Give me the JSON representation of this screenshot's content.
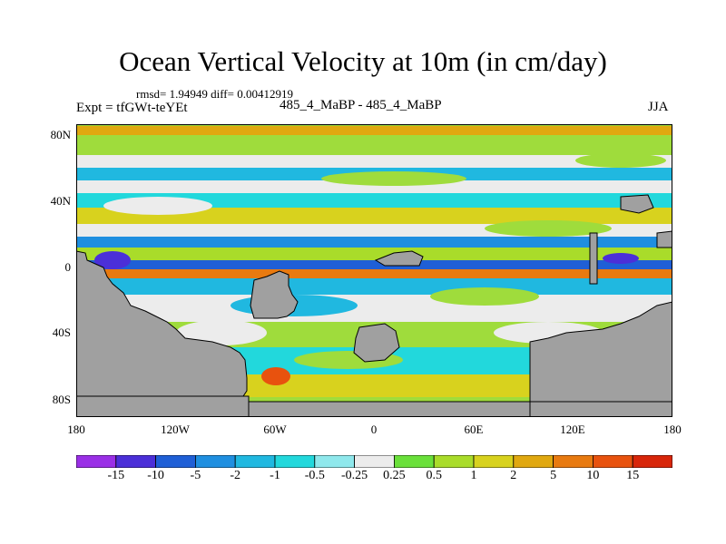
{
  "title": "Ocean Vertical Velocity at 10m (in cm/day)",
  "stats": "rmsd= 1.94949 diff= 0.00412919",
  "expt": "Expt = tfGWt-teYEt",
  "center_label": "485_4_MaBP - 485_4_MaBP",
  "season": "JJA",
  "lat_labels": [
    "80N",
    "40N",
    "0",
    "40S",
    "80S"
  ],
  "lon_labels": [
    "180",
    "120W",
    "60W",
    "0",
    "60E",
    "120E",
    "180"
  ],
  "colorbar": {
    "labels": [
      "-15",
      "-10",
      "-5",
      "-2",
      "-1",
      "-0.5",
      "-0.25",
      "0.25",
      "0.5",
      "1",
      "2",
      "5",
      "10",
      "15"
    ],
    "colors": [
      "#9a2fe6",
      "#4b2fd8",
      "#1f5fd6",
      "#1f8fe0",
      "#20b8e0",
      "#22d8dc",
      "#8fe8ec",
      "#ececec",
      "#6ae03a",
      "#a9dc2a",
      "#d8d21e",
      "#e0a810",
      "#e87a10",
      "#e8520e",
      "#d8260a"
    ]
  },
  "map_colors": {
    "land": "#a0a0a0",
    "ocean_background": "#9fdc3c"
  }
}
